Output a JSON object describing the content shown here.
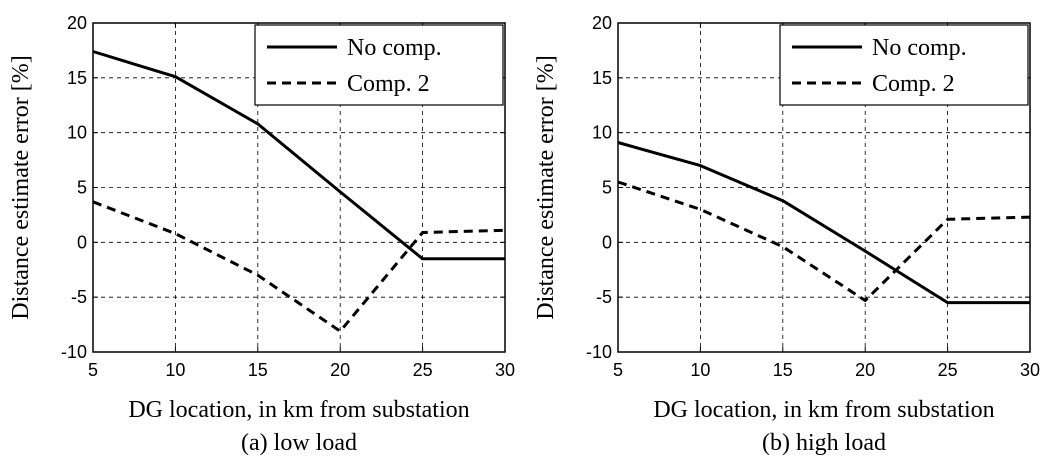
{
  "chart_data": [
    {
      "type": "line",
      "caption": "(a) low load",
      "xlabel": "DG location, in km from substation",
      "ylabel": "Distance estimate error [%]",
      "xlim": [
        5,
        30
      ],
      "ylim": [
        -10,
        20
      ],
      "xticks": [
        5,
        10,
        15,
        20,
        25,
        30
      ],
      "yticks": [
        -10,
        -5,
        0,
        5,
        10,
        15,
        20
      ],
      "grid": true,
      "legend_position": "top-right",
      "x": [
        5,
        10,
        15,
        20,
        25,
        30
      ],
      "series": [
        {
          "name": "No comp.",
          "style": "solid",
          "values": [
            17.4,
            15.1,
            10.8,
            4.6,
            -1.5,
            -1.5
          ]
        },
        {
          "name": "Comp. 2",
          "style": "dashed",
          "values": [
            3.7,
            0.8,
            -3.0,
            -8.1,
            0.9,
            1.1
          ]
        }
      ]
    },
    {
      "type": "line",
      "caption": "(b) high load",
      "xlabel": "DG location, in km from substation",
      "ylabel": "Distance estimate error [%]",
      "xlim": [
        5,
        30
      ],
      "ylim": [
        -10,
        20
      ],
      "xticks": [
        5,
        10,
        15,
        20,
        25,
        30
      ],
      "yticks": [
        -10,
        -5,
        0,
        5,
        10,
        15,
        20
      ],
      "grid": true,
      "legend_position": "top-right",
      "x": [
        5,
        10,
        15,
        20,
        25,
        30
      ],
      "series": [
        {
          "name": "No comp.",
          "style": "solid",
          "values": [
            9.1,
            7.0,
            3.8,
            -0.8,
            -5.5,
            -5.5
          ]
        },
        {
          "name": "Comp. 2",
          "style": "dashed",
          "values": [
            5.5,
            3.0,
            -0.4,
            -5.3,
            2.1,
            2.3
          ]
        }
      ]
    }
  ]
}
